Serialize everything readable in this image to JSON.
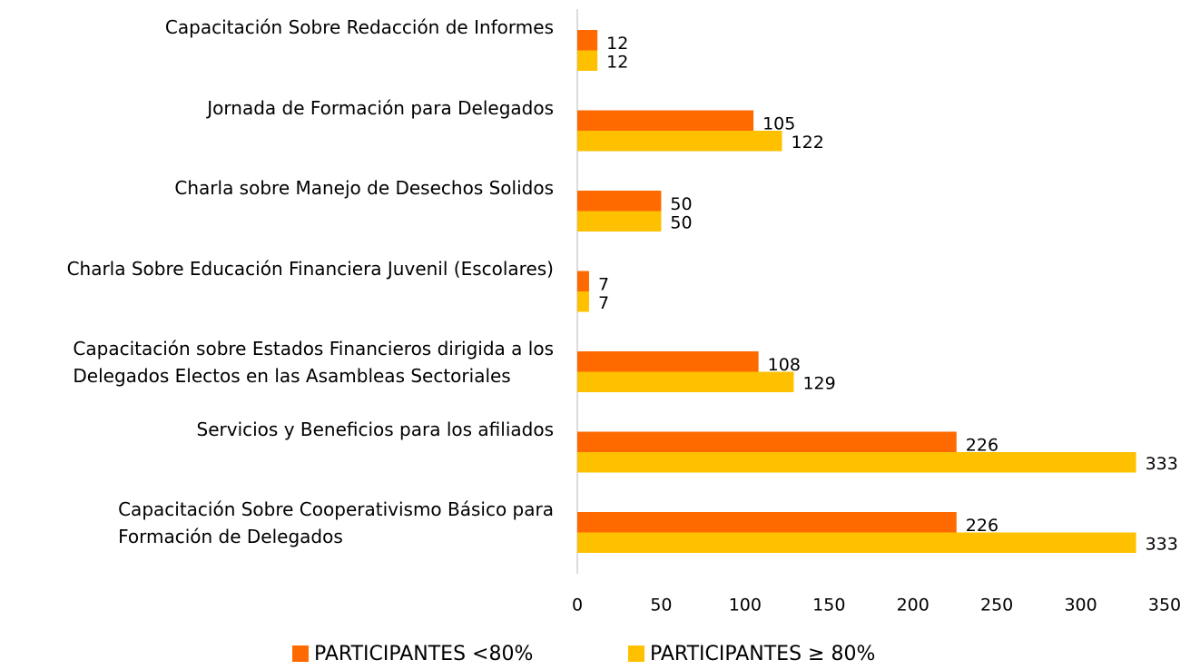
{
  "chart_data": {
    "type": "hbar",
    "categories": [
      "Capacitación Sobre Redacción de Informes",
      "Jornada de Formación para Delegados",
      "Charla sobre Manejo de Desechos Solidos",
      "Charla Sobre Educación Financiera Juvenil (Escolares)",
      "Capacitación sobre Estados Financieros dirigida a los\nDelegados Electos en las Asambleas Sectoriales",
      "Servicios y Beneficios para los afiliados",
      "Capacitación Sobre Cooperativismo Básico para\nFormación de Delegados"
    ],
    "series": [
      {
        "name": "PARTICIPANTES <80%",
        "color": "#ff6a00",
        "values": [
          12,
          105,
          50,
          7,
          108,
          226,
          226
        ]
      },
      {
        "name": "PARTICIPANTES ≥ 80%",
        "color": "#ffc000",
        "values": [
          12,
          122,
          50,
          7,
          129,
          333,
          333
        ]
      }
    ],
    "xlim": [
      0,
      350
    ],
    "xticks": [
      0,
      50,
      100,
      150,
      200,
      250,
      300,
      350
    ],
    "grid": false,
    "legend": "bottom"
  }
}
